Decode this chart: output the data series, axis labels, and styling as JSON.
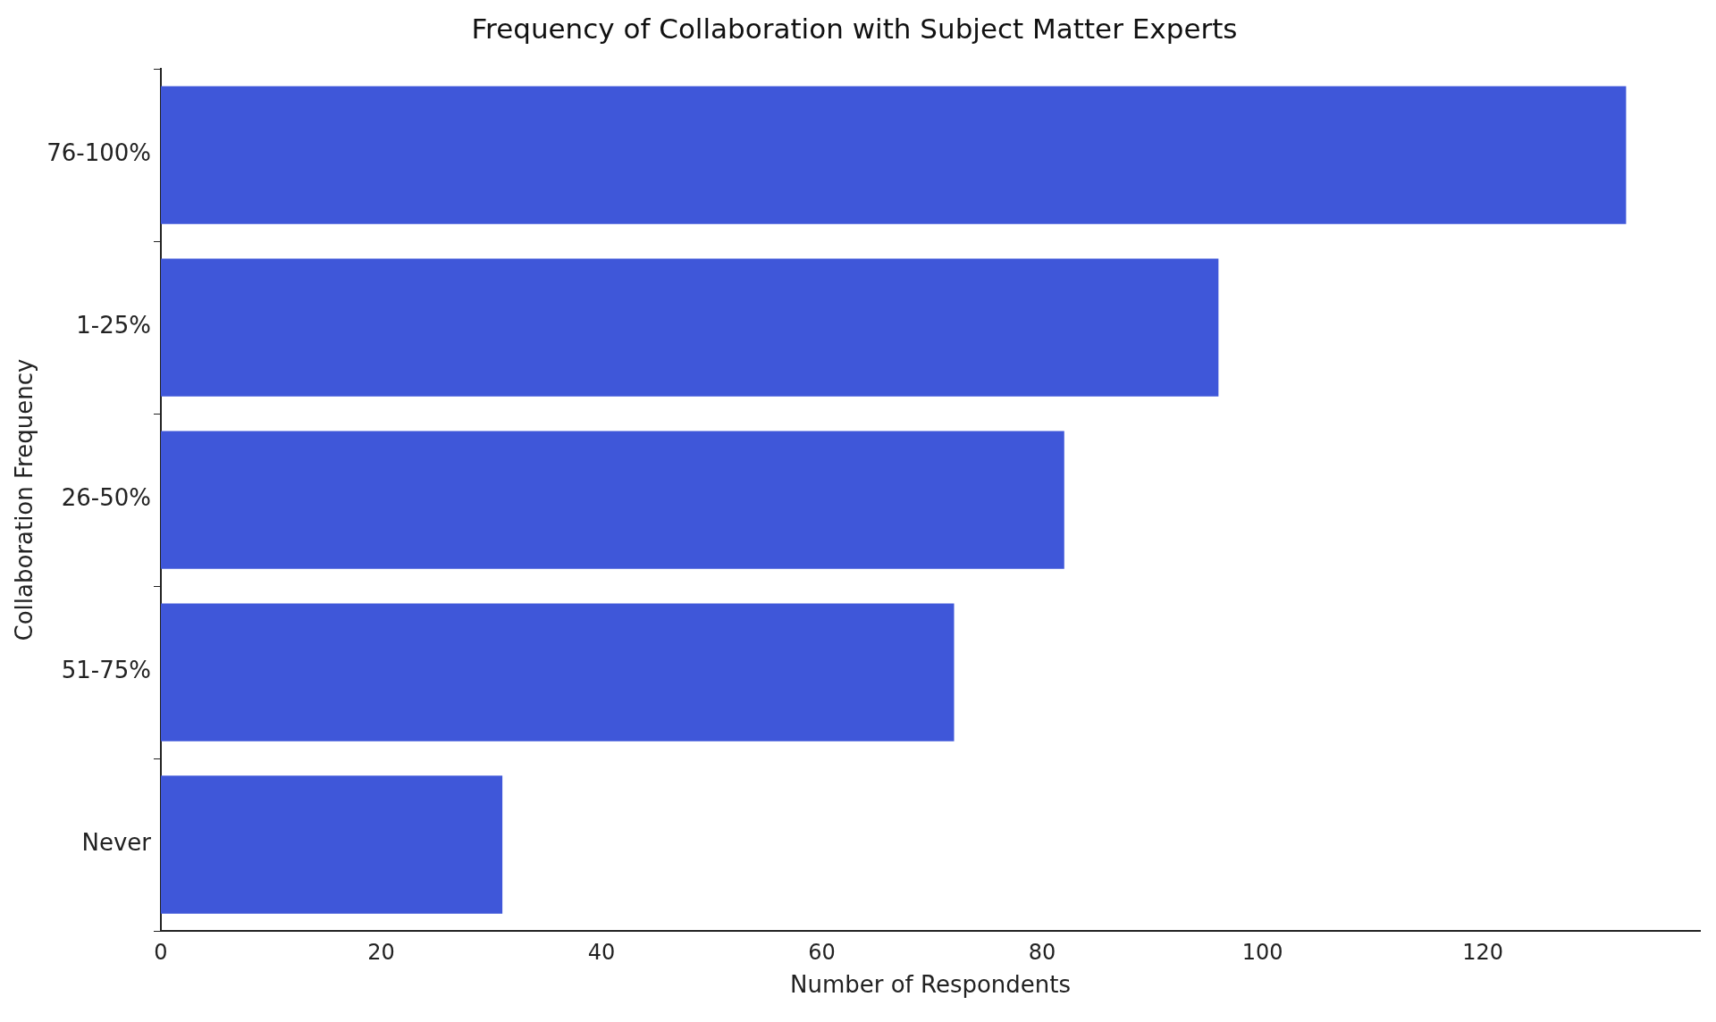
{
  "chart_data": {
    "type": "bar",
    "orientation": "horizontal",
    "title": "Frequency of Collaboration with Subject Matter Experts",
    "xlabel": "Number of Respondents",
    "ylabel": "Collaboration Frequency",
    "categories": [
      "76-100%",
      "1-25%",
      "26-50%",
      "51-75%",
      "Never"
    ],
    "values": [
      133,
      96,
      82,
      72,
      31
    ],
    "color": "#3f57d9",
    "xlim": [
      0,
      139.7
    ],
    "xticks": [
      0,
      20,
      40,
      60,
      80,
      100,
      120
    ],
    "grid": false,
    "legend": false
  }
}
